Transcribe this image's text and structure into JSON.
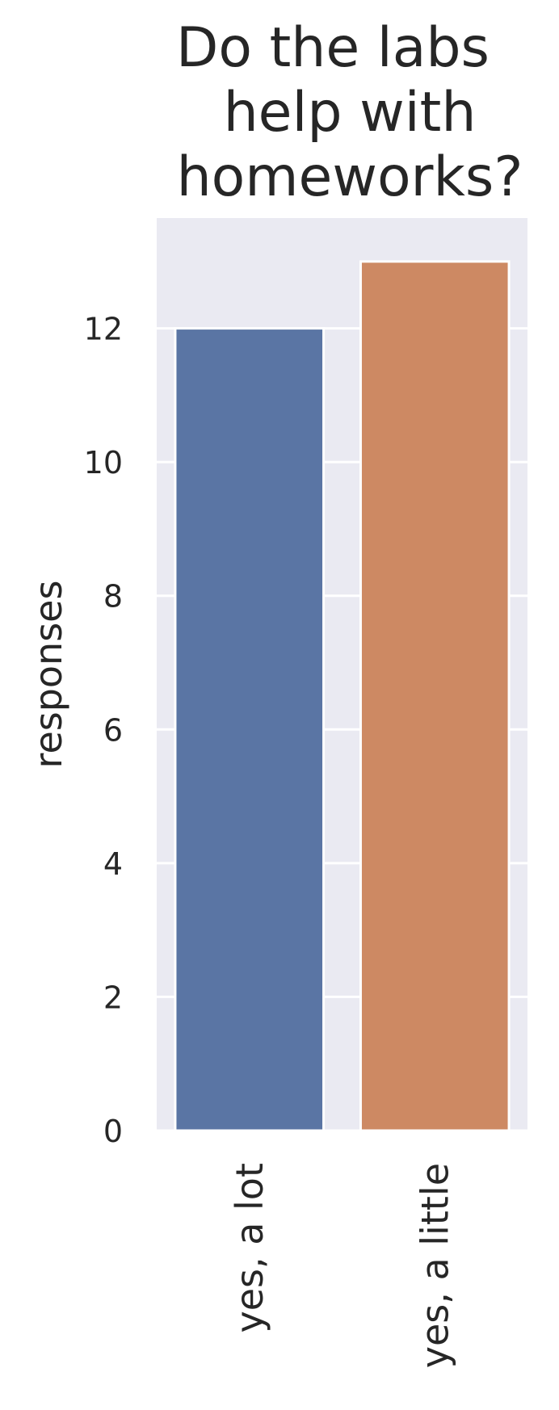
{
  "chart_data": {
    "type": "bar",
    "title_lines": [
      "Do the labs",
      "help with",
      "homeworks?"
    ],
    "xlabel": "",
    "ylabel": "responses",
    "categories": [
      "yes, a lot",
      "yes, a little"
    ],
    "values": [
      12,
      13
    ],
    "ylim": [
      0,
      13.65
    ],
    "yticks": [
      0,
      2,
      4,
      6,
      8,
      10,
      12
    ],
    "grid": true,
    "legend": "none",
    "colors": [
      "#5a75a4",
      "#cd8963"
    ],
    "background": "#eaeaf2",
    "grid_color": "#ffffff"
  }
}
